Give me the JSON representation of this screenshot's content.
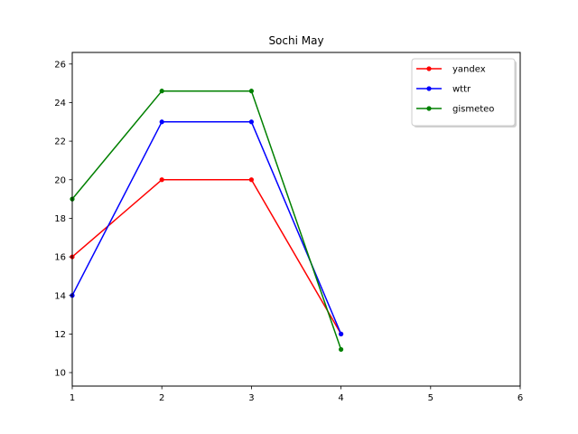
{
  "chart_data": {
    "type": "line",
    "title": "Sochi May",
    "xlabel": "",
    "ylabel": "",
    "xlim": [
      1,
      6
    ],
    "ylim": [
      9.3,
      26.6
    ],
    "x_ticks": [
      1,
      2,
      3,
      4,
      5,
      6
    ],
    "y_ticks": [
      10,
      12,
      14,
      16,
      18,
      20,
      22,
      24,
      26
    ],
    "grid": false,
    "legend_position": "top-right",
    "series": [
      {
        "name": "yandex",
        "color": "#ff0000",
        "marker": "point",
        "x": [
          1,
          2,
          3,
          4
        ],
        "y": [
          16,
          20,
          20,
          12
        ]
      },
      {
        "name": "wttr",
        "color": "#0000ff",
        "marker": "point",
        "x": [
          1,
          2,
          3,
          4
        ],
        "y": [
          14,
          23,
          23,
          12
        ]
      },
      {
        "name": "gismeteo",
        "color": "#008000",
        "marker": "point",
        "x": [
          1,
          2,
          3,
          4
        ],
        "y": [
          19,
          24.6,
          24.6,
          11.2
        ]
      }
    ]
  }
}
